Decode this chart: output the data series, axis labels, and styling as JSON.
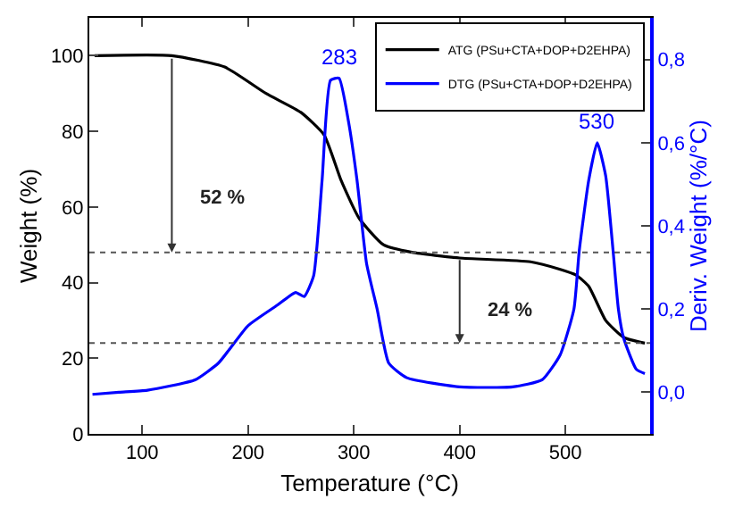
{
  "chart_data": {
    "type": "line",
    "xlabel": "Temperature (°C)",
    "ylabel": "Weight (%)",
    "y2label": "Deriv. Weight (%/°C)",
    "xlim": [
      50,
      580
    ],
    "xticks": [
      100,
      200,
      300,
      400,
      500
    ],
    "ylim": [
      0,
      110
    ],
    "yticks": [
      0,
      20,
      40,
      60,
      80,
      100
    ],
    "y2lim": [
      -0.1,
      0.9
    ],
    "y2ticks": [
      {
        "value": 0,
        "label": "0,0"
      },
      {
        "value": 0.2,
        "label": "0,2"
      },
      {
        "value": 0.4,
        "label": "0,4"
      },
      {
        "value": 0.6,
        "label": "0,6"
      },
      {
        "value": 0.8,
        "label": "0,8"
      }
    ],
    "legend": "top right",
    "marker": "none",
    "line_style": "solid",
    "series": [
      {
        "name": "ATG (PSu+CTA+DOP+D2EHPA)",
        "color": "#000000",
        "x": [
          55,
          128,
          178,
          217,
          250,
          272,
          288,
          305,
          328,
          355,
          400,
          467,
          495,
          510,
          522,
          538,
          555,
          575
        ],
        "values": [
          100,
          100,
          97,
          90,
          85,
          79,
          67,
          57,
          50,
          48,
          46.5,
          45.5,
          43.5,
          42,
          39,
          30,
          25.5,
          24
        ]
      },
      {
        "name": "DTG (PSu+CTA+DOP+D2EHPA)",
        "color": "#0000ff",
        "axis": "y2",
        "x": [
          53,
          78,
          105,
          150,
          172,
          183,
          200,
          228,
          245,
          253,
          262,
          270,
          278,
          286,
          295,
          303,
          312,
          322,
          333,
          350,
          400,
          450,
          478,
          495,
          508,
          513,
          522,
          530,
          538,
          545,
          550,
          555,
          567,
          575
        ],
        "values": [
          -0.005,
          0.0,
          0.005,
          0.03,
          0.07,
          0.105,
          0.16,
          0.21,
          0.24,
          0.23,
          0.28,
          0.51,
          0.75,
          0.755,
          0.65,
          0.51,
          0.31,
          0.2,
          0.07,
          0.035,
          0.013,
          0.013,
          0.03,
          0.09,
          0.2,
          0.34,
          0.51,
          0.6,
          0.52,
          0.34,
          0.2,
          0.13,
          0.055,
          0.045
        ]
      }
    ],
    "ref_lines": [
      {
        "axis": "y",
        "value": 48,
        "color": "#555555",
        "line_style": "dotted"
      },
      {
        "axis": "y",
        "value": 24,
        "color": "#555555",
        "line_style": "dotted"
      }
    ],
    "annotations": [
      {
        "text": "52 %",
        "x": 128,
        "y": 48
      },
      {
        "text": "24 %",
        "x": 400,
        "y": 24
      },
      "283",
      "530"
    ]
  }
}
